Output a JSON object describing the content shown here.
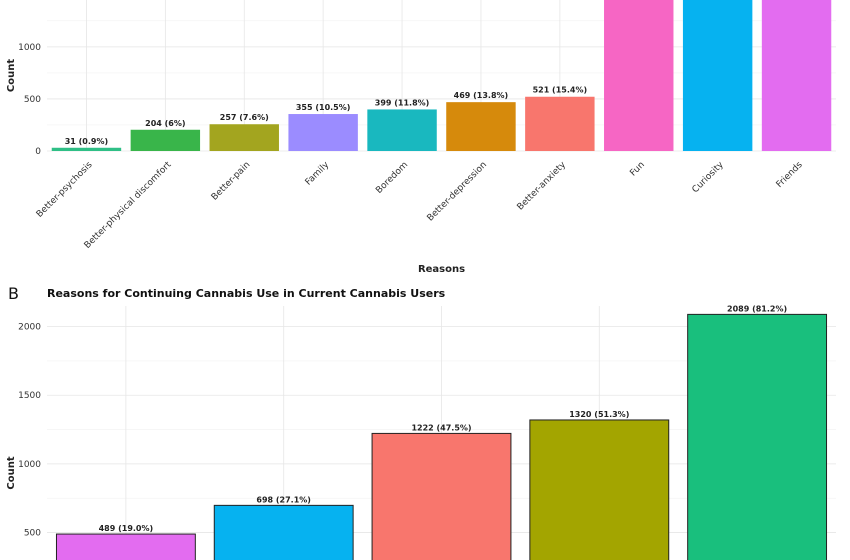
{
  "chart_data": [
    {
      "type": "bar",
      "title": "",
      "xlabel": "Reasons",
      "ylabel": "Count",
      "yticks": [
        0,
        500,
        1000
      ],
      "ylim": [
        0,
        1450
      ],
      "grid": true,
      "legend": "none",
      "categories": [
        "Better-psychosis",
        "Better-physical discomfort",
        "Better-pain",
        "Family",
        "Boredom",
        "Better-depression",
        "Better-anxiety",
        "Fun",
        "Curiosity",
        "Friends"
      ],
      "values": [
        31,
        204,
        257,
        355,
        399,
        469,
        521,
        1500,
        1500,
        1500
      ],
      "data_labels": [
        "31 (0.9%)",
        "204 (6%)",
        "257 (7.6%)",
        "355 (10.5%)",
        "399 (11.8%)",
        "469 (13.8%)",
        "521 (15.4%)",
        "",
        "",
        ""
      ],
      "colors": [
        "#2fbf86",
        "#39b54a",
        "#a3a51f",
        "#9b8cff",
        "#19b8bf",
        "#d68a0c",
        "#f8766d",
        "#f666c4",
        "#06b2f0",
        "#e36cf0"
      ]
    },
    {
      "type": "bar",
      "panel": "B",
      "title": "Reasons for Continuing Cannabis Use in Current Cannabis Users",
      "xlabel": "",
      "ylabel": "Count",
      "yticks": [
        500,
        1000,
        1500,
        2000
      ],
      "ylim": [
        300,
        2150
      ],
      "grid": true,
      "legend": "none",
      "categories": [
        "",
        "",
        "",
        "",
        ""
      ],
      "values": [
        489,
        698,
        1222,
        1320,
        2089
      ],
      "data_labels": [
        "489 (19.0%)",
        "698 (27.1%)",
        "1222 (47.5%)",
        "1320 (51.3%)",
        "2089 (81.2%)"
      ],
      "colors": [
        "#e36cf0",
        "#06b2f0",
        "#f8766d",
        "#a3a500",
        "#19bf7d"
      ]
    }
  ]
}
